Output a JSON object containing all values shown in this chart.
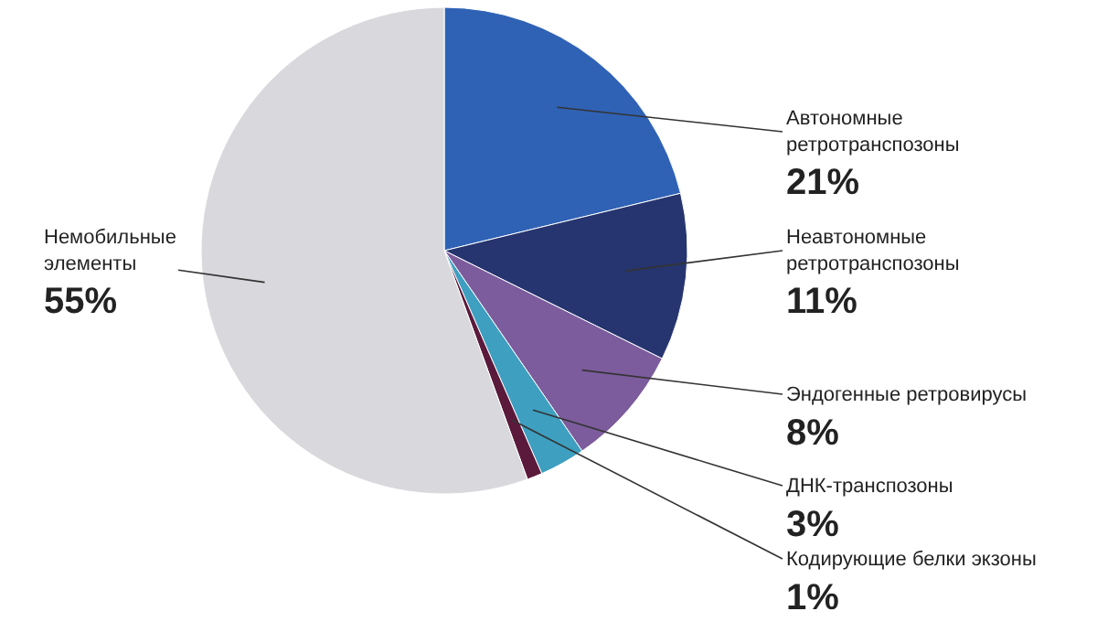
{
  "chart_data": {
    "type": "pie",
    "categories": [
      "Автономные\nретротранспозоны",
      "Неавтономные\nретротранспозоны",
      "Эндогенные ретровирусы",
      "ДНК-транспозоны",
      "Кодирующие белки экзоны",
      "Немобильные\nэлементы"
    ],
    "values": [
      21,
      11,
      8,
      3,
      1,
      55
    ],
    "value_labels": [
      "21%",
      "11%",
      "8%",
      "3%",
      "1%",
      "55%"
    ],
    "colors": [
      "#2f62b5",
      "#26356f",
      "#7c5c9c",
      "#3e9fc0",
      "#5b1a3c",
      "#d9d9dd"
    ],
    "legend": false
  }
}
